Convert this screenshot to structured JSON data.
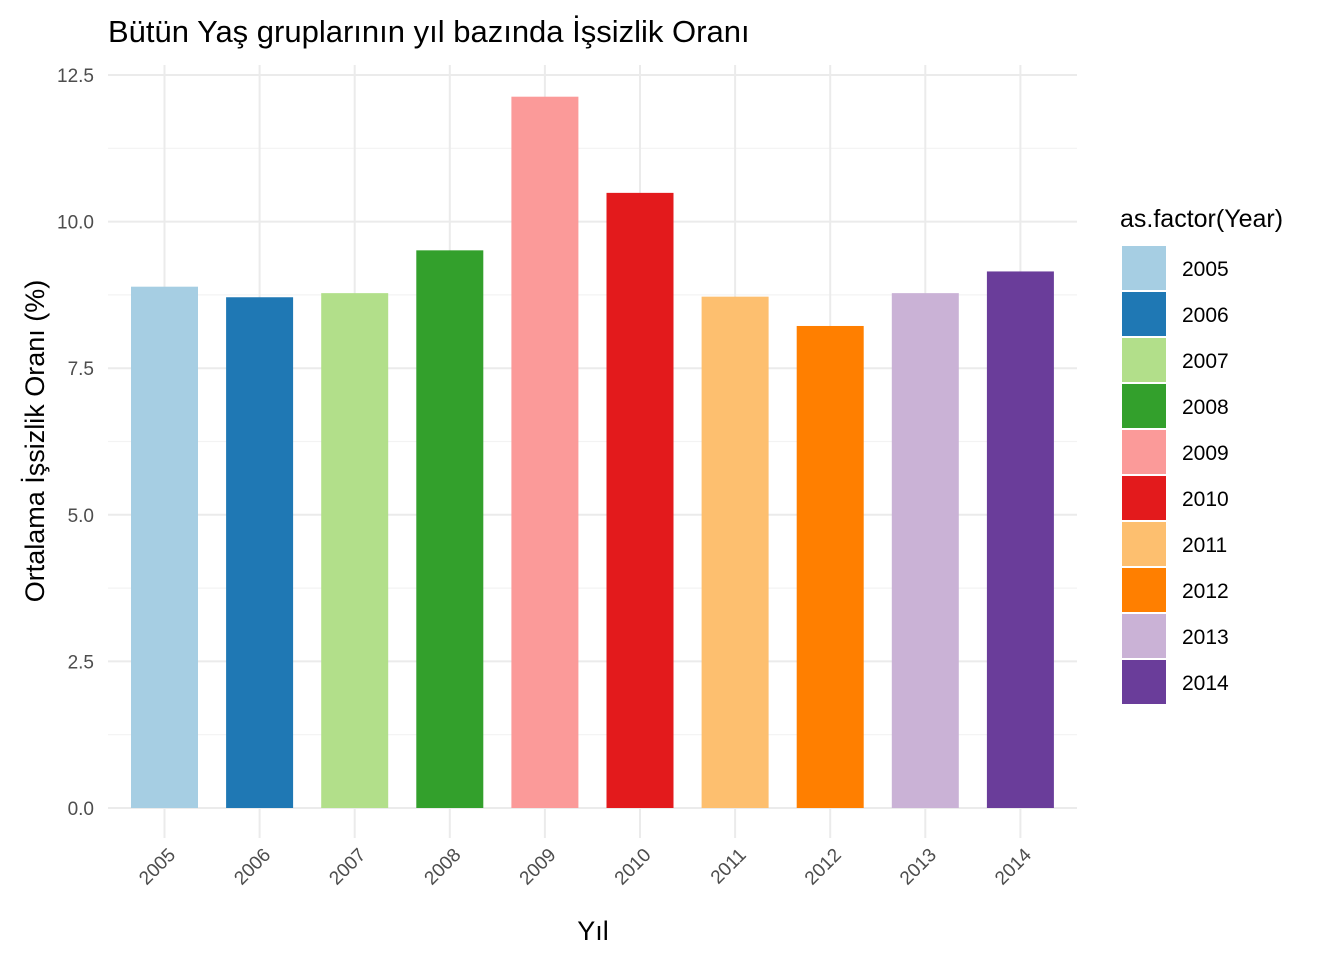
{
  "chart_data": {
    "type": "bar",
    "title": "Bütün Yaş gruplarının yıl bazında İşsizlik Oranı",
    "xlabel": "Yıl",
    "ylabel": "Ortalama İşsizlik Oranı (%)",
    "categories": [
      "2005",
      "2006",
      "2007",
      "2008",
      "2009",
      "2010",
      "2011",
      "2012",
      "2013",
      "2014"
    ],
    "values": [
      8.89,
      8.71,
      8.78,
      9.51,
      12.13,
      10.49,
      8.72,
      8.22,
      8.78,
      9.15
    ],
    "colors": [
      "#a6cee3",
      "#1f78b4",
      "#b2df8a",
      "#33a02c",
      "#fb9a99",
      "#e31a1c",
      "#fdbf6f",
      "#ff7f00",
      "#cab2d6",
      "#6a3d9a"
    ],
    "ylim": [
      0,
      12.5
    ],
    "yticks": [
      "0.0",
      "2.5",
      "5.0",
      "7.5",
      "10.0",
      "12.5"
    ],
    "grid": true,
    "legend": {
      "title": "as.factor(Year)",
      "position": "right",
      "entries": [
        "2005",
        "2006",
        "2007",
        "2008",
        "2009",
        "2010",
        "2011",
        "2012",
        "2013",
        "2014"
      ]
    }
  }
}
